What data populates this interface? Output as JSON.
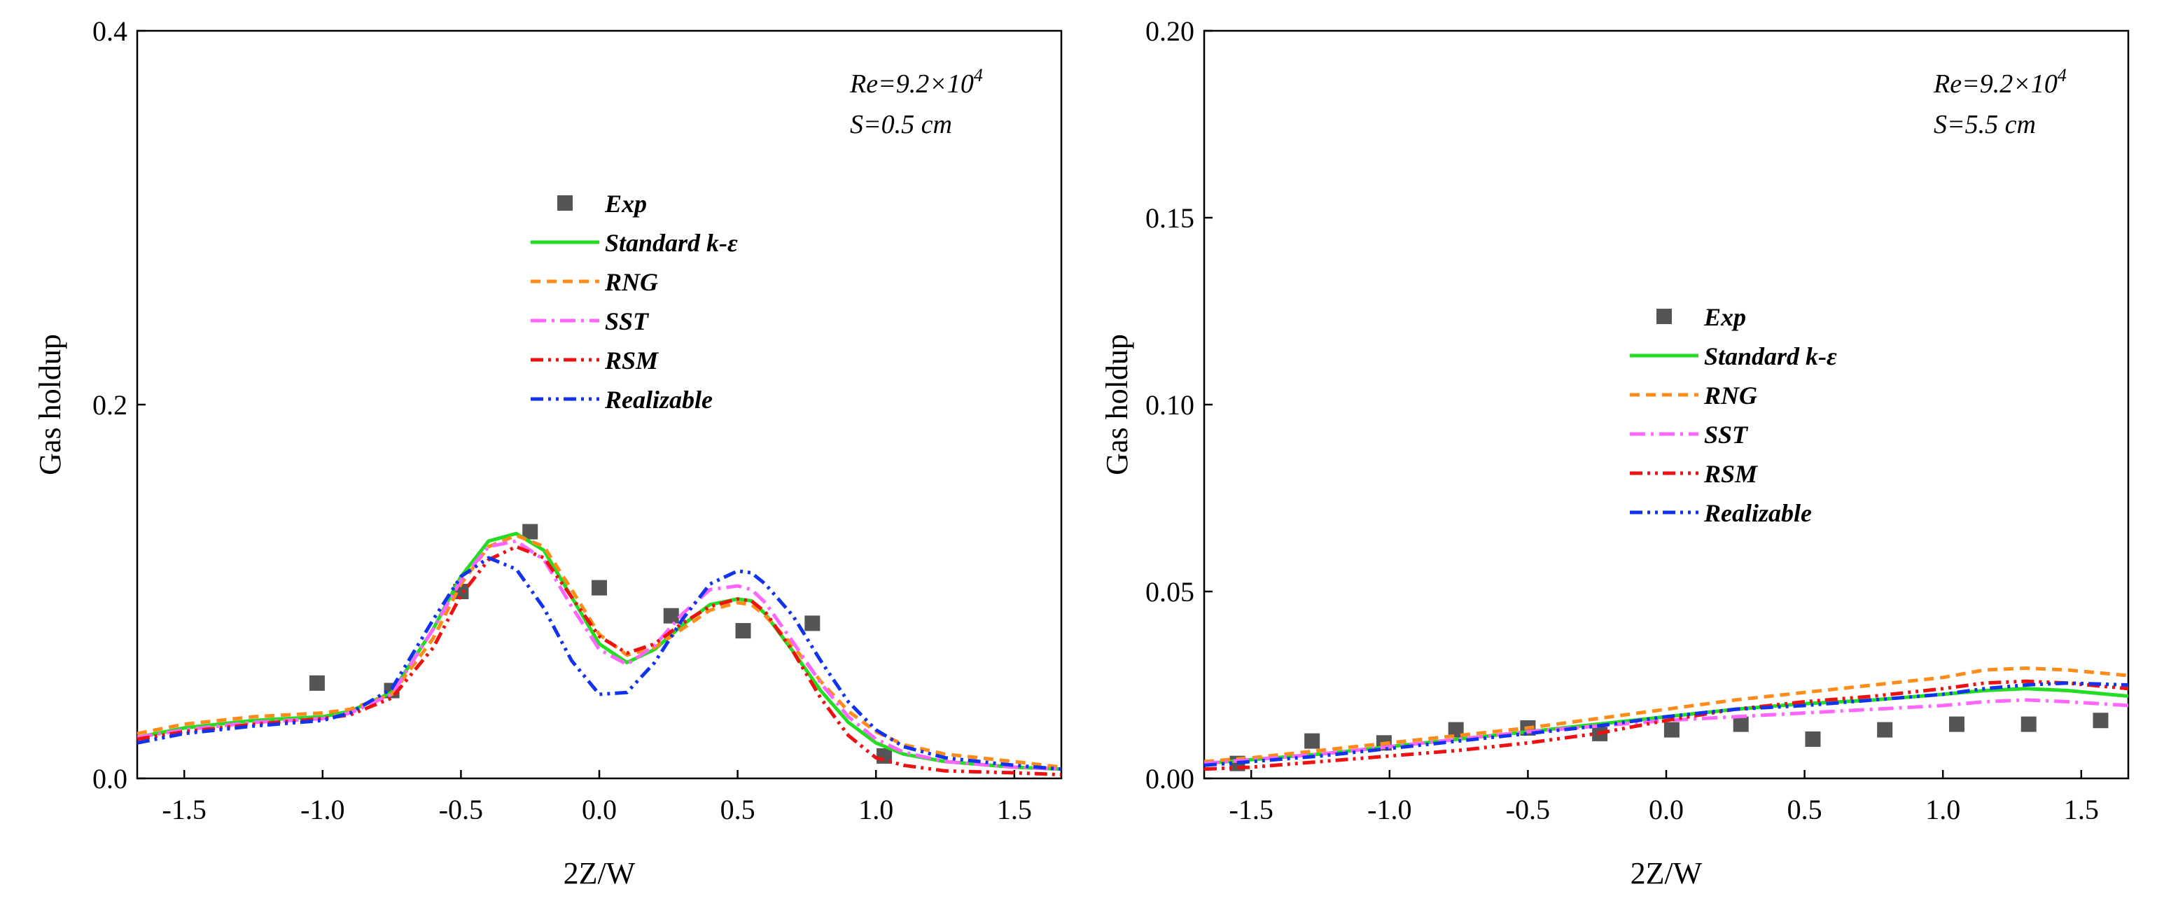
{
  "chart_data": [
    {
      "type": "line",
      "xlabel": "2Z/W",
      "ylabel": "Gas holdup",
      "xlim": [
        -1.67,
        1.67
      ],
      "ylim": [
        0,
        0.4
      ],
      "xticks": [
        "-1.5",
        "-1.0",
        "-0.5",
        "0.0",
        "0.5",
        "1.0",
        "1.5"
      ],
      "xtick_values": [
        -1.5,
        -1.0,
        -0.5,
        0.0,
        0.5,
        1.0,
        1.5
      ],
      "yticks": [
        "0.0",
        "0.2",
        "0.4"
      ],
      "ytick_values": [
        0.0,
        0.2,
        0.4
      ],
      "annotation": {
        "re_prefix": "Re=9.2×10",
        "re_exp": "4",
        "s": "S=0.5 cm"
      },
      "legend_position": "center",
      "legend": [
        "Exp",
        "Standard k-ε",
        "RNG",
        "SST",
        "RSM",
        "Realizable"
      ],
      "x": [
        -1.67,
        -1.5,
        -1.25,
        -1.0,
        -0.9,
        -0.75,
        -0.6,
        -0.5,
        -0.4,
        -0.3,
        -0.2,
        -0.1,
        0.0,
        0.1,
        0.2,
        0.3,
        0.4,
        0.5,
        0.55,
        0.6,
        0.7,
        0.8,
        0.9,
        1.0,
        1.1,
        1.25,
        1.5,
        1.67
      ],
      "series": [
        {
          "name": "Exp",
          "style": "marker",
          "color": "#555555",
          "x": [
            -1.02,
            -0.75,
            -0.5,
            -0.25,
            0.0,
            0.26,
            0.52,
            0.77,
            1.03
          ],
          "y": [
            0.051,
            0.047,
            0.1,
            0.132,
            0.102,
            0.087,
            0.079,
            0.083,
            0.012
          ]
        },
        {
          "name": "Standard k-ε",
          "style": "solid",
          "color": "#22dd22",
          "y": [
            0.022,
            0.027,
            0.031,
            0.033,
            0.036,
            0.046,
            0.08,
            0.108,
            0.127,
            0.131,
            0.122,
            0.097,
            0.072,
            0.062,
            0.069,
            0.082,
            0.093,
            0.096,
            0.095,
            0.088,
            0.068,
            0.047,
            0.03,
            0.019,
            0.013,
            0.009,
            0.006,
            0.005
          ]
        },
        {
          "name": "RNG",
          "style": "dash",
          "color": "#ff8c1a",
          "y": [
            0.024,
            0.029,
            0.033,
            0.035,
            0.037,
            0.045,
            0.075,
            0.104,
            0.124,
            0.13,
            0.124,
            0.101,
            0.077,
            0.066,
            0.07,
            0.08,
            0.09,
            0.094,
            0.093,
            0.087,
            0.071,
            0.052,
            0.036,
            0.025,
            0.018,
            0.013,
            0.009,
            0.006
          ]
        },
        {
          "name": "SST",
          "style": "dashdot",
          "color": "#ff66ff",
          "y": [
            0.022,
            0.026,
            0.03,
            0.032,
            0.035,
            0.045,
            0.08,
            0.106,
            0.124,
            0.127,
            0.117,
            0.092,
            0.069,
            0.061,
            0.071,
            0.088,
            0.101,
            0.103,
            0.101,
            0.094,
            0.073,
            0.051,
            0.033,
            0.021,
            0.014,
            0.009,
            0.006,
            0.005
          ]
        },
        {
          "name": "RSM",
          "style": "dashdotdot",
          "color": "#ee1111",
          "y": [
            0.021,
            0.025,
            0.029,
            0.032,
            0.034,
            0.043,
            0.07,
            0.098,
            0.117,
            0.124,
            0.118,
            0.097,
            0.076,
            0.067,
            0.072,
            0.083,
            0.092,
            0.096,
            0.095,
            0.089,
            0.068,
            0.043,
            0.023,
            0.011,
            0.007,
            0.004,
            0.003,
            0.002
          ]
        },
        {
          "name": "Realizable",
          "style": "dashdotdot",
          "color": "#1133ee",
          "y": [
            0.019,
            0.024,
            0.028,
            0.031,
            0.035,
            0.048,
            0.085,
            0.108,
            0.118,
            0.112,
            0.091,
            0.063,
            0.045,
            0.046,
            0.062,
            0.085,
            0.104,
            0.111,
            0.11,
            0.104,
            0.087,
            0.063,
            0.041,
            0.026,
            0.017,
            0.011,
            0.007,
            0.005
          ]
        }
      ]
    },
    {
      "type": "line",
      "xlabel": "2Z/W",
      "ylabel": "Gas holdup",
      "xlim": [
        -1.67,
        1.67
      ],
      "ylim": [
        0,
        0.2
      ],
      "xticks": [
        "-1.5",
        "-1.0",
        "-0.5",
        "0.0",
        "0.5",
        "1.0",
        "1.5"
      ],
      "xtick_values": [
        -1.5,
        -1.0,
        -0.5,
        0.0,
        0.5,
        1.0,
        1.5
      ],
      "yticks": [
        "0.00",
        "0.05",
        "0.10",
        "0.15",
        "0.20"
      ],
      "ytick_values": [
        0.0,
        0.05,
        0.1,
        0.15,
        0.2
      ],
      "annotation": {
        "re_prefix": "Re=9.2×10",
        "re_exp": "4",
        "s": "S=5.5 cm"
      },
      "legend_position": "center",
      "legend": [
        "Exp",
        "Standard k-ε",
        "RNG",
        "SST",
        "RSM",
        "Realizable"
      ],
      "x": [
        -1.67,
        -1.5,
        -1.25,
        -1.0,
        -0.75,
        -0.5,
        -0.25,
        0.0,
        0.25,
        0.5,
        0.75,
        1.0,
        1.15,
        1.3,
        1.45,
        1.67
      ],
      "series": [
        {
          "name": "Exp",
          "style": "marker",
          "color": "#555555",
          "x": [
            -1.55,
            -1.28,
            -1.02,
            -0.76,
            -0.5,
            -0.24,
            0.02,
            0.27,
            0.53,
            0.79,
            1.05,
            1.31,
            1.57
          ],
          "y": [
            0.004,
            0.01,
            0.0095,
            0.013,
            0.0135,
            0.012,
            0.013,
            0.0145,
            0.0105,
            0.013,
            0.0145,
            0.0145,
            0.0155
          ]
        },
        {
          "name": "Standard k-ε",
          "style": "solid",
          "color": "#22dd22",
          "y": [
            0.004,
            0.005,
            0.0065,
            0.0085,
            0.0105,
            0.0125,
            0.0145,
            0.0165,
            0.0185,
            0.02,
            0.021,
            0.0225,
            0.0235,
            0.024,
            0.0235,
            0.022
          ]
        },
        {
          "name": "RNG",
          "style": "dash",
          "color": "#ff8c1a",
          "y": [
            0.0045,
            0.0055,
            0.0075,
            0.0095,
            0.0115,
            0.0135,
            0.016,
            0.0185,
            0.021,
            0.023,
            0.025,
            0.027,
            0.029,
            0.0295,
            0.029,
            0.0275
          ]
        },
        {
          "name": "SST",
          "style": "dashdot",
          "color": "#ff66ff",
          "y": [
            0.004,
            0.005,
            0.0065,
            0.0085,
            0.0105,
            0.0125,
            0.014,
            0.0155,
            0.0165,
            0.0175,
            0.0185,
            0.0195,
            0.0205,
            0.021,
            0.0205,
            0.0195
          ]
        },
        {
          "name": "RSM",
          "style": "dashdotdot",
          "color": "#ee1111",
          "y": [
            0.0025,
            0.003,
            0.0045,
            0.006,
            0.0075,
            0.0095,
            0.012,
            0.0155,
            0.0185,
            0.0205,
            0.022,
            0.024,
            0.0255,
            0.026,
            0.0255,
            0.024
          ]
        },
        {
          "name": "Realizable",
          "style": "dashdotdot",
          "color": "#1133ee",
          "y": [
            0.0035,
            0.0045,
            0.006,
            0.008,
            0.01,
            0.012,
            0.014,
            0.0165,
            0.0185,
            0.0195,
            0.021,
            0.0225,
            0.024,
            0.025,
            0.0255,
            0.025
          ]
        }
      ]
    }
  ]
}
